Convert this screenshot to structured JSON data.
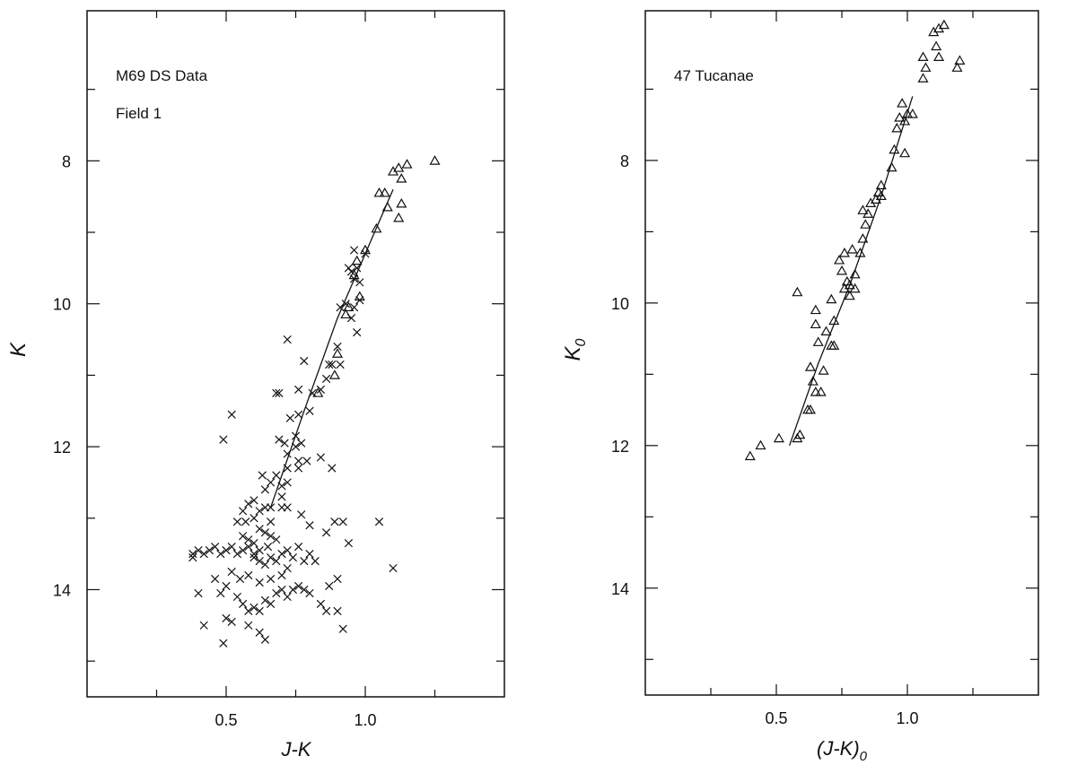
{
  "chart_data": [
    {
      "type": "scatter",
      "annotations": [
        "M69 DS Data",
        "Field 1"
      ],
      "xlabel": "J-K",
      "ylabel": "K",
      "xlim": [
        0.0,
        1.5
      ],
      "ylim": [
        15.5,
        5.9
      ],
      "y_inverted": true,
      "grid": false,
      "x_ticks": [
        0.5,
        1.0
      ],
      "x_tick_labels": [
        "0.5",
        "1.0"
      ],
      "y_ticks": [
        8,
        10,
        12,
        14
      ],
      "y_tick_labels": [
        "8",
        "10",
        "12",
        "14"
      ],
      "marker_colors": "#111111",
      "series": [
        {
          "marker": "x-icon",
          "points": [
            [
              0.96,
              9.25
            ],
            [
              0.94,
              9.5
            ],
            [
              0.95,
              9.55
            ],
            [
              0.97,
              9.5
            ],
            [
              1.0,
              9.3
            ],
            [
              0.96,
              9.65
            ],
            [
              0.98,
              9.7
            ],
            [
              0.93,
              10.0
            ],
            [
              0.96,
              10.05
            ],
            [
              0.98,
              9.95
            ],
            [
              0.91,
              10.05
            ],
            [
              0.95,
              10.2
            ],
            [
              0.97,
              10.4
            ],
            [
              0.9,
              10.6
            ],
            [
              0.91,
              10.85
            ],
            [
              0.87,
              10.85
            ],
            [
              0.86,
              11.05
            ],
            [
              0.84,
              11.2
            ],
            [
              0.81,
              11.25
            ],
            [
              0.76,
              11.2
            ],
            [
              0.68,
              11.25
            ],
            [
              0.8,
              11.5
            ],
            [
              0.76,
              11.55
            ],
            [
              0.73,
              11.6
            ],
            [
              0.75,
              11.85
            ],
            [
              0.77,
              11.95
            ],
            [
              0.75,
              12.0
            ],
            [
              0.71,
              11.95
            ],
            [
              0.69,
              11.9
            ],
            [
              0.72,
              12.1
            ],
            [
              0.76,
              12.2
            ],
            [
              0.79,
              12.2
            ],
            [
              0.72,
              12.3
            ],
            [
              0.68,
              12.4
            ],
            [
              0.7,
              12.55
            ],
            [
              0.72,
              12.5
            ],
            [
              0.66,
              12.5
            ],
            [
              0.64,
              12.6
            ],
            [
              0.7,
              12.7
            ],
            [
              0.66,
              12.85
            ],
            [
              0.62,
              12.9
            ],
            [
              0.6,
              12.75
            ],
            [
              0.58,
              12.8
            ],
            [
              0.56,
              12.9
            ],
            [
              0.63,
              12.4
            ],
            [
              0.64,
              12.85
            ],
            [
              0.7,
              12.85
            ],
            [
              0.72,
              12.85
            ],
            [
              0.66,
              13.05
            ],
            [
              0.6,
              13.0
            ],
            [
              0.57,
              13.05
            ],
            [
              0.54,
              13.05
            ],
            [
              0.56,
              13.25
            ],
            [
              0.58,
              13.3
            ],
            [
              0.6,
              13.35
            ],
            [
              0.62,
              13.15
            ],
            [
              0.64,
              13.2
            ],
            [
              0.66,
              13.25
            ],
            [
              0.68,
              13.3
            ],
            [
              0.65,
              13.4
            ],
            [
              0.62,
              13.45
            ],
            [
              0.6,
              13.5
            ],
            [
              0.58,
              13.4
            ],
            [
              0.56,
              13.45
            ],
            [
              0.54,
              13.5
            ],
            [
              0.52,
              13.4
            ],
            [
              0.5,
              13.45
            ],
            [
              0.48,
              13.5
            ],
            [
              0.46,
              13.4
            ],
            [
              0.44,
              13.45
            ],
            [
              0.42,
              13.5
            ],
            [
              0.4,
              13.45
            ],
            [
              0.38,
              13.55
            ],
            [
              0.6,
              13.55
            ],
            [
              0.62,
              13.6
            ],
            [
              0.64,
              13.65
            ],
            [
              0.66,
              13.55
            ],
            [
              0.68,
              13.6
            ],
            [
              0.7,
              13.5
            ],
            [
              0.72,
              13.45
            ],
            [
              0.74,
              13.55
            ],
            [
              0.76,
              13.4
            ],
            [
              0.78,
              13.6
            ],
            [
              0.8,
              13.5
            ],
            [
              0.82,
              13.6
            ],
            [
              0.72,
              13.7
            ],
            [
              0.7,
              13.8
            ],
            [
              0.66,
              13.85
            ],
            [
              0.62,
              13.9
            ],
            [
              0.58,
              13.8
            ],
            [
              0.55,
              13.85
            ],
            [
              0.52,
              13.75
            ],
            [
              0.5,
              13.95
            ],
            [
              0.48,
              14.05
            ],
            [
              0.46,
              13.85
            ],
            [
              0.4,
              14.05
            ],
            [
              0.42,
              14.5
            ],
            [
              0.5,
              14.4
            ],
            [
              0.52,
              14.45
            ],
            [
              0.54,
              14.1
            ],
            [
              0.56,
              14.2
            ],
            [
              0.58,
              14.3
            ],
            [
              0.6,
              14.25
            ],
            [
              0.62,
              14.3
            ],
            [
              0.64,
              14.15
            ],
            [
              0.66,
              14.2
            ],
            [
              0.68,
              14.05
            ],
            [
              0.7,
              14.0
            ],
            [
              0.72,
              14.1
            ],
            [
              0.74,
              14.0
            ],
            [
              0.76,
              13.95
            ],
            [
              0.78,
              14.0
            ],
            [
              0.8,
              14.05
            ],
            [
              0.84,
              14.2
            ],
            [
              0.86,
              14.3
            ],
            [
              0.9,
              14.3
            ],
            [
              0.92,
              14.55
            ],
            [
              0.62,
              14.6
            ],
            [
              0.64,
              14.7
            ],
            [
              0.58,
              14.5
            ],
            [
              0.49,
              14.75
            ],
            [
              0.38,
              13.5
            ],
            [
              0.49,
              11.9
            ],
            [
              0.52,
              11.55
            ],
            [
              0.69,
              11.25
            ],
            [
              0.76,
              12.3
            ],
            [
              0.84,
              12.15
            ],
            [
              0.88,
              12.3
            ],
            [
              0.77,
              12.95
            ],
            [
              0.8,
              13.1
            ],
            [
              0.86,
              13.2
            ],
            [
              0.89,
              13.05
            ],
            [
              0.92,
              13.05
            ],
            [
              0.94,
              13.35
            ],
            [
              0.9,
              13.85
            ],
            [
              0.87,
              13.95
            ],
            [
              1.05,
              13.05
            ],
            [
              1.1,
              13.7
            ],
            [
              0.72,
              10.5
            ],
            [
              0.78,
              10.8
            ],
            [
              0.88,
              10.85
            ]
          ]
        },
        {
          "marker": "triangle-icon",
          "points": [
            [
              1.25,
              8.0
            ],
            [
              1.15,
              8.05
            ],
            [
              1.12,
              8.1
            ],
            [
              1.1,
              8.15
            ],
            [
              1.13,
              8.25
            ],
            [
              1.05,
              8.45
            ],
            [
              1.07,
              8.45
            ],
            [
              1.13,
              8.6
            ],
            [
              1.08,
              8.65
            ],
            [
              1.12,
              8.8
            ],
            [
              1.04,
              8.95
            ],
            [
              1.0,
              9.25
            ],
            [
              0.97,
              9.4
            ],
            [
              0.96,
              9.6
            ],
            [
              0.98,
              9.9
            ],
            [
              0.94,
              10.05
            ],
            [
              0.93,
              10.15
            ],
            [
              0.9,
              10.7
            ],
            [
              0.89,
              11.0
            ],
            [
              0.83,
              11.25
            ]
          ]
        }
      ],
      "fit_line": {
        "x": [
          1.1,
          0.9,
          0.78,
          0.66
        ],
        "y": [
          8.4,
          10.2,
          11.5,
          12.85
        ]
      }
    },
    {
      "type": "scatter",
      "annotations": [
        "47 Tucanae"
      ],
      "xlabel_main": "(J-K)",
      "xlabel_sub": "0",
      "ylabel_main": "K",
      "ylabel_sub": "0",
      "xlim": [
        0.0,
        1.5
      ],
      "ylim": [
        15.5,
        5.9
      ],
      "y_inverted": true,
      "grid": false,
      "x_ticks": [
        0.5,
        1.0
      ],
      "x_tick_labels": [
        "0.5",
        "1.0"
      ],
      "y_ticks": [
        8,
        10,
        12,
        14
      ],
      "y_tick_labels": [
        "8",
        "10",
        "12",
        "14"
      ],
      "marker_colors": "#111111",
      "series": [
        {
          "marker": "triangle-icon",
          "points": [
            [
              1.14,
              6.1
            ],
            [
              1.12,
              6.15
            ],
            [
              1.1,
              6.2
            ],
            [
              1.11,
              6.4
            ],
            [
              1.06,
              6.55
            ],
            [
              1.12,
              6.55
            ],
            [
              1.07,
              6.7
            ],
            [
              1.06,
              6.85
            ],
            [
              1.2,
              6.6
            ],
            [
              1.19,
              6.7
            ],
            [
              0.98,
              7.2
            ],
            [
              0.97,
              7.4
            ],
            [
              1.0,
              7.35
            ],
            [
              1.02,
              7.35
            ],
            [
              0.99,
              7.45
            ],
            [
              0.96,
              7.55
            ],
            [
              0.95,
              7.85
            ],
            [
              0.99,
              7.9
            ],
            [
              0.94,
              8.1
            ],
            [
              0.9,
              8.35
            ],
            [
              0.89,
              8.45
            ],
            [
              0.9,
              8.5
            ],
            [
              0.88,
              8.55
            ],
            [
              0.86,
              8.6
            ],
            [
              0.85,
              8.75
            ],
            [
              0.83,
              8.7
            ],
            [
              0.84,
              8.9
            ],
            [
              0.83,
              9.1
            ],
            [
              0.82,
              9.3
            ],
            [
              0.79,
              9.25
            ],
            [
              0.76,
              9.3
            ],
            [
              0.74,
              9.4
            ],
            [
              0.75,
              9.55
            ],
            [
              0.77,
              9.7
            ],
            [
              0.8,
              9.6
            ],
            [
              0.78,
              9.75
            ],
            [
              0.76,
              9.8
            ],
            [
              0.8,
              9.8
            ],
            [
              0.78,
              9.9
            ],
            [
              0.58,
              9.85
            ],
            [
              0.71,
              9.95
            ],
            [
              0.72,
              10.25
            ],
            [
              0.69,
              10.4
            ],
            [
              0.65,
              10.1
            ],
            [
              0.65,
              10.3
            ],
            [
              0.66,
              10.55
            ],
            [
              0.72,
              10.6
            ],
            [
              0.71,
              10.6
            ],
            [
              0.68,
              10.95
            ],
            [
              0.63,
              10.9
            ],
            [
              0.64,
              11.1
            ],
            [
              0.65,
              11.25
            ],
            [
              0.67,
              11.25
            ],
            [
              0.62,
              11.5
            ],
            [
              0.63,
              11.5
            ],
            [
              0.58,
              11.9
            ],
            [
              0.59,
              11.85
            ],
            [
              0.51,
              11.9
            ],
            [
              0.44,
              12.0
            ],
            [
              0.4,
              12.15
            ]
          ]
        }
      ],
      "fit_line": {
        "x": [
          1.02,
          0.9,
          0.78,
          0.66,
          0.55
        ],
        "y": [
          7.1,
          8.5,
          9.75,
          10.85,
          12.0
        ]
      }
    }
  ]
}
